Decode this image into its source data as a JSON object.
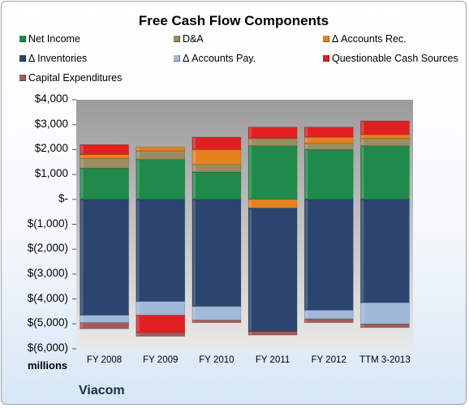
{
  "chart_data": {
    "type": "bar",
    "stacked": true,
    "title": "Free Cash Flow Components",
    "company": "Viacom",
    "units": "millions",
    "categories": [
      "FY 2008",
      "FY 2009",
      "FY 2010",
      "FY 2011",
      "FY 2012",
      "TTM 3-2013"
    ],
    "ylim": [
      -6000,
      4000
    ],
    "yticks": [
      4000,
      3000,
      2000,
      1000,
      0,
      -1000,
      -2000,
      -3000,
      -4000,
      -5000,
      -6000
    ],
    "ytick_labels": [
      "$4,000",
      "$3,000",
      "$2,000",
      "$1,000",
      "$-",
      "$(1,000)",
      "$(2,000)",
      "$(3,000)",
      "$(4,000)",
      "$(5,000)",
      "$(6,000)"
    ],
    "grid": false,
    "legend_position": "top",
    "series": [
      {
        "name": "Net Income",
        "color": "#1f8a4a",
        "values": [
          1250,
          1600,
          1100,
          2150,
          2000,
          2150
        ]
      },
      {
        "name": "D&A",
        "color": "#9c8c5e",
        "values": [
          400,
          350,
          300,
          300,
          250,
          300
        ]
      },
      {
        "name": "Δ Accounts Rec.",
        "color": "#e4821f",
        "values": [
          150,
          150,
          600,
          -350,
          250,
          150
        ]
      },
      {
        "name": "Δ Inventories",
        "color": "#2b4470",
        "values": [
          -4650,
          -4100,
          -4300,
          -4950,
          -4450,
          -4150
        ]
      },
      {
        "name": "Δ Accounts Pay.",
        "color": "#9fb9d9",
        "values": [
          -300,
          -550,
          -550,
          0,
          -350,
          -850
        ]
      },
      {
        "name": "Questionable Cash Sources",
        "color": "#e02020",
        "values": [
          400,
          0,
          500,
          450,
          400,
          550
        ]
      },
      {
        "name": "Questionable Cash Sources (negative)",
        "color": "#e02020",
        "values": [
          0,
          -700,
          0,
          0,
          0,
          0
        ]
      },
      {
        "name": "Capital Expenditures",
        "color": "#a35a5a",
        "values": [
          -250,
          -150,
          -100,
          -150,
          -150,
          -150
        ]
      }
    ]
  },
  "legend": [
    {
      "label": "Net Income",
      "color": "#1f8a4a"
    },
    {
      "label": "D&A",
      "color": "#9c8c5e"
    },
    {
      "label": "Δ Accounts Rec.",
      "color": "#e4821f"
    },
    {
      "label": "Δ Inventories",
      "color": "#2b4470"
    },
    {
      "label": "Δ Accounts Pay.",
      "color": "#9fb9d9"
    },
    {
      "label": "Questionable Cash Sources",
      "color": "#e02020"
    },
    {
      "label": "Capital Expenditures",
      "color": "#a35a5a"
    }
  ]
}
